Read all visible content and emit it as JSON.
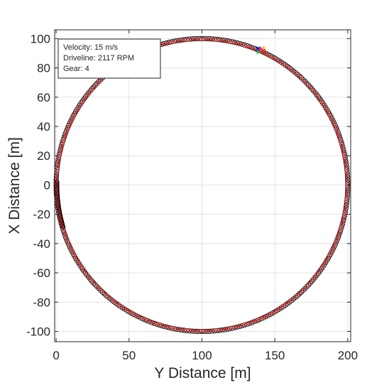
{
  "chart_data": {
    "type": "scatter",
    "title": "",
    "xlabel": "Y Distance [m]",
    "ylabel": "X Distance [m]",
    "xlim": [
      -1,
      202
    ],
    "ylim": [
      -107,
      106
    ],
    "xticks": [
      0,
      50,
      100,
      150,
      200
    ],
    "yticks": [
      -100,
      -80,
      -60,
      -40,
      -20,
      0,
      20,
      40,
      60,
      80,
      100
    ],
    "xtick_labels": [
      "0",
      "50",
      "100",
      "150",
      "200"
    ],
    "ytick_labels": [
      "-100",
      "-80",
      "-60",
      "-40",
      "-20",
      "0",
      "20",
      "40",
      "60",
      "80",
      "100"
    ],
    "grid": true,
    "track": {
      "description": "circular track, center (100, 0), radius 100",
      "center": [
        100,
        0
      ],
      "radius": 100
    },
    "series": [
      {
        "marker": "circle-open",
        "color": "#000000"
      },
      {
        "marker": "x",
        "color": "#d62728"
      }
    ],
    "vehicle_position": [
      140,
      92
    ],
    "vehicle_marker_colors": [
      "#0000ff",
      "#00cc00",
      "#ff00ff",
      "#ff8c00",
      "#d62728"
    ],
    "info_box": {
      "location": "top-left",
      "lines": [
        "Velocity:  15 m/s",
        "Driveline: 2117 RPM",
        "Gear:  4"
      ]
    }
  }
}
